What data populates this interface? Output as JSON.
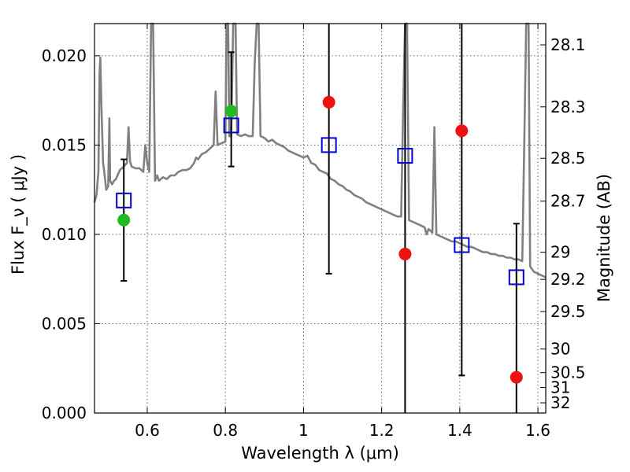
{
  "chart_data": {
    "type": "scatter",
    "xlabel": "Wavelength  λ (μm)",
    "ylabel": "Flux  F_ν  ( μJy )",
    "ylabel_right": "Magnitude (AB)",
    "xlim": [
      0.465,
      1.62
    ],
    "ylim": [
      0.0,
      0.0218
    ],
    "grid": true,
    "x_ticks": [
      0.6,
      0.8,
      1.0,
      1.2,
      1.4,
      1.6
    ],
    "x_tick_labels": [
      "0.6",
      "0.8",
      "1",
      "1.2",
      "1.4",
      "1.6"
    ],
    "y_ticks": [
      0.0,
      0.005,
      0.01,
      0.015,
      0.02
    ],
    "y_tick_labels": [
      "0.000",
      "0.005",
      "0.010",
      "0.015",
      "0.020"
    ],
    "right_ticks": [
      {
        "label": "28.1",
        "flux": 0.02061
      },
      {
        "label": "28.3",
        "flux": 0.01714
      },
      {
        "label": "28.5",
        "flux": 0.01426
      },
      {
        "label": "28.7",
        "flux": 0.01186
      },
      {
        "label": "29",
        "flux": 0.009
      },
      {
        "label": "29.2",
        "flux": 0.00748
      },
      {
        "label": "29.5",
        "flux": 0.00568
      },
      {
        "label": "30",
        "flux": 0.00358
      },
      {
        "label": "30.5",
        "flux": 0.00226
      },
      {
        "label": "31",
        "flux": 0.00143
      },
      {
        "label": "32",
        "flux": 0.00057
      }
    ],
    "model_points": [
      {
        "x": 0.54,
        "y": 0.0119
      },
      {
        "x": 0.815,
        "y": 0.0161
      },
      {
        "x": 1.065,
        "y": 0.015
      },
      {
        "x": 1.26,
        "y": 0.0144
      },
      {
        "x": 1.405,
        "y": 0.0094
      },
      {
        "x": 1.545,
        "y": 0.0076
      }
    ],
    "green_points": [
      {
        "x": 0.54,
        "y": 0.0108
      },
      {
        "x": 0.815,
        "y": 0.0169
      }
    ],
    "red_points": [
      {
        "x": 1.065,
        "y": 0.0174
      },
      {
        "x": 1.26,
        "y": 0.0089
      },
      {
        "x": 1.405,
        "y": 0.0158
      },
      {
        "x": 1.545,
        "y": 0.002
      }
    ],
    "error_bars": [
      {
        "x": 0.54,
        "low": 0.0074,
        "high": 0.0142
      },
      {
        "x": 0.815,
        "low": 0.0138,
        "high": 0.0202
      },
      {
        "x": 1.065,
        "low": 0.0078,
        "high": 0.0218
      },
      {
        "x": 1.26,
        "low": 0.0,
        "high": 0.0218
      },
      {
        "x": 1.405,
        "low": 0.0021,
        "high": 0.0218
      },
      {
        "x": 1.545,
        "low": 0.0,
        "high": 0.0106
      }
    ],
    "spectrum": [
      [
        0.465,
        0.0118
      ],
      [
        0.47,
        0.0122
      ],
      [
        0.475,
        0.0135
      ],
      [
        0.478,
        0.019
      ],
      [
        0.48,
        0.0199
      ],
      [
        0.483,
        0.017
      ],
      [
        0.487,
        0.014
      ],
      [
        0.49,
        0.0135
      ],
      [
        0.495,
        0.0125
      ],
      [
        0.5,
        0.0127
      ],
      [
        0.503,
        0.0165
      ],
      [
        0.505,
        0.013
      ],
      [
        0.51,
        0.0128
      ],
      [
        0.515,
        0.013
      ],
      [
        0.52,
        0.0131
      ],
      [
        0.53,
        0.0136
      ],
      [
        0.54,
        0.0138
      ],
      [
        0.548,
        0.014
      ],
      [
        0.552,
        0.016
      ],
      [
        0.556,
        0.0141
      ],
      [
        0.56,
        0.0138
      ],
      [
        0.57,
        0.0137
      ],
      [
        0.58,
        0.0137
      ],
      [
        0.59,
        0.0135
      ],
      [
        0.595,
        0.015
      ],
      [
        0.6,
        0.014
      ],
      [
        0.605,
        0.0135
      ],
      [
        0.61,
        0.0218
      ],
      [
        0.615,
        0.0218
      ],
      [
        0.62,
        0.013
      ],
      [
        0.625,
        0.0133
      ],
      [
        0.63,
        0.013
      ],
      [
        0.64,
        0.0132
      ],
      [
        0.65,
        0.0131
      ],
      [
        0.66,
        0.0133
      ],
      [
        0.67,
        0.0133
      ],
      [
        0.68,
        0.0135
      ],
      [
        0.69,
        0.0136
      ],
      [
        0.7,
        0.0136
      ],
      [
        0.71,
        0.0137
      ],
      [
        0.72,
        0.014
      ],
      [
        0.725,
        0.0143
      ],
      [
        0.73,
        0.0142
      ],
      [
        0.74,
        0.0145
      ],
      [
        0.75,
        0.0146
      ],
      [
        0.76,
        0.0148
      ],
      [
        0.77,
        0.015
      ],
      [
        0.775,
        0.018
      ],
      [
        0.78,
        0.015
      ],
      [
        0.79,
        0.0151
      ],
      [
        0.8,
        0.0152
      ],
      [
        0.803,
        0.0218
      ],
      [
        0.807,
        0.0218
      ],
      [
        0.81,
        0.0155
      ],
      [
        0.815,
        0.0155
      ],
      [
        0.82,
        0.0218
      ],
      [
        0.826,
        0.0218
      ],
      [
        0.83,
        0.0156
      ],
      [
        0.84,
        0.0155
      ],
      [
        0.85,
        0.0156
      ],
      [
        0.86,
        0.0155
      ],
      [
        0.87,
        0.0155
      ],
      [
        0.875,
        0.0195
      ],
      [
        0.88,
        0.0218
      ],
      [
        0.885,
        0.0218
      ],
      [
        0.89,
        0.0155
      ],
      [
        0.9,
        0.0154
      ],
      [
        0.91,
        0.0152
      ],
      [
        0.92,
        0.0153
      ],
      [
        0.93,
        0.0151
      ],
      [
        0.94,
        0.015
      ],
      [
        0.95,
        0.0149
      ],
      [
        0.96,
        0.0147
      ],
      [
        0.97,
        0.0146
      ],
      [
        0.98,
        0.0145
      ],
      [
        0.99,
        0.0144
      ],
      [
        1.0,
        0.0143
      ],
      [
        1.01,
        0.0144
      ],
      [
        1.02,
        0.014
      ],
      [
        1.03,
        0.0139
      ],
      [
        1.04,
        0.0136
      ],
      [
        1.05,
        0.0135
      ],
      [
        1.06,
        0.0134
      ],
      [
        1.07,
        0.0131
      ],
      [
        1.08,
        0.013
      ],
      [
        1.09,
        0.0128
      ],
      [
        1.1,
        0.0127
      ],
      [
        1.11,
        0.0125
      ],
      [
        1.12,
        0.0124
      ],
      [
        1.13,
        0.0122
      ],
      [
        1.14,
        0.0121
      ],
      [
        1.15,
        0.012
      ],
      [
        1.16,
        0.0118
      ],
      [
        1.17,
        0.0117
      ],
      [
        1.18,
        0.0116
      ],
      [
        1.19,
        0.0115
      ],
      [
        1.2,
        0.0114
      ],
      [
        1.21,
        0.0113
      ],
      [
        1.22,
        0.0112
      ],
      [
        1.23,
        0.0111
      ],
      [
        1.24,
        0.011
      ],
      [
        1.25,
        0.011
      ],
      [
        1.255,
        0.017
      ],
      [
        1.26,
        0.0218
      ],
      [
        1.265,
        0.0218
      ],
      [
        1.27,
        0.0108
      ],
      [
        1.28,
        0.0107
      ],
      [
        1.29,
        0.0106
      ],
      [
        1.3,
        0.0105
      ],
      [
        1.31,
        0.0104
      ],
      [
        1.315,
        0.01
      ],
      [
        1.32,
        0.0103
      ],
      [
        1.33,
        0.0101
      ],
      [
        1.335,
        0.016
      ],
      [
        1.34,
        0.01
      ],
      [
        1.35,
        0.0099
      ],
      [
        1.36,
        0.0098
      ],
      [
        1.37,
        0.0097
      ],
      [
        1.38,
        0.0096
      ],
      [
        1.39,
        0.0096
      ],
      [
        1.4,
        0.0095
      ],
      [
        1.41,
        0.0094
      ],
      [
        1.42,
        0.0093
      ],
      [
        1.43,
        0.0093
      ],
      [
        1.44,
        0.0092
      ],
      [
        1.45,
        0.0091
      ],
      [
        1.46,
        0.009
      ],
      [
        1.47,
        0.009
      ],
      [
        1.48,
        0.0089
      ],
      [
        1.49,
        0.0089
      ],
      [
        1.5,
        0.0088
      ],
      [
        1.51,
        0.0088
      ],
      [
        1.52,
        0.0087
      ],
      [
        1.53,
        0.0087
      ],
      [
        1.54,
        0.0086
      ],
      [
        1.55,
        0.0086
      ],
      [
        1.56,
        0.0085
      ],
      [
        1.565,
        0.015
      ],
      [
        1.57,
        0.0218
      ],
      [
        1.576,
        0.0218
      ],
      [
        1.58,
        0.0082
      ],
      [
        1.59,
        0.0079
      ],
      [
        1.6,
        0.0078
      ],
      [
        1.61,
        0.0077
      ],
      [
        1.62,
        0.0076
      ]
    ],
    "colors": {
      "spectrum": "#808080",
      "model": "#0000cc",
      "green": "#22bb22",
      "red": "#ee1111",
      "error": "#000000"
    }
  }
}
